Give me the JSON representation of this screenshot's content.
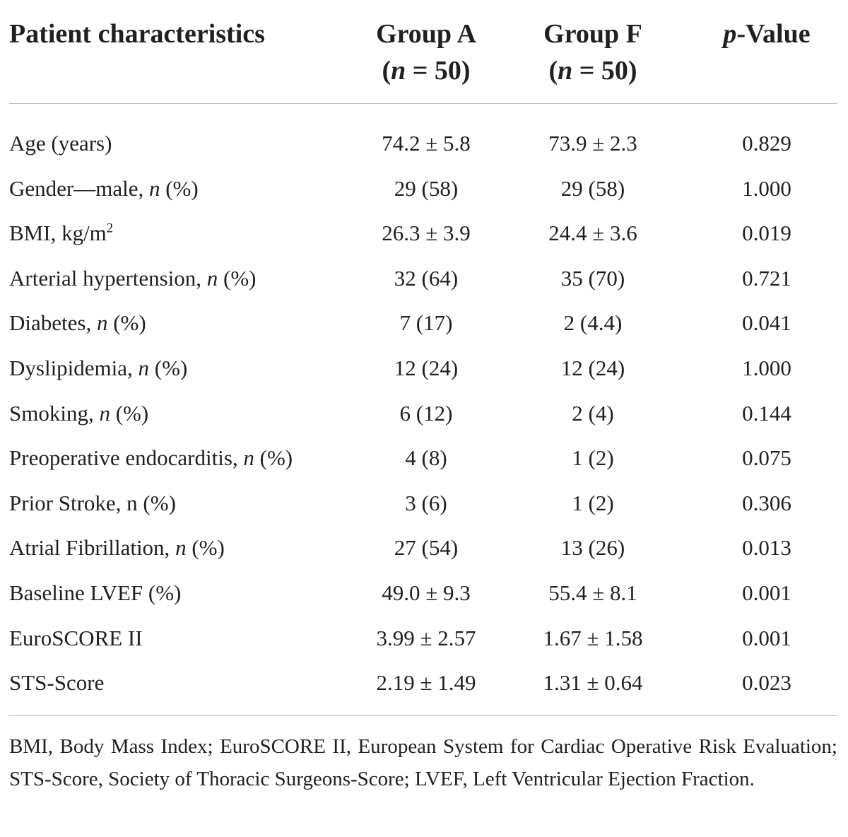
{
  "header": {
    "characteristics": "Patient characteristics",
    "group_a_line1": "Group A",
    "group_a_line2": "(n = 50)",
    "group_f_line1": "Group F",
    "group_f_line2": "(n = 50)",
    "p_value": "p-Value"
  },
  "rows": [
    {
      "label": "Age (years)",
      "a": "74.2 ± 5.8",
      "f": "73.9 ± 2.3",
      "p": "0.829"
    },
    {
      "label": "Gender—male, n (%)",
      "a": "29 (58)",
      "f": "29 (58)",
      "p": "1.000"
    },
    {
      "label": "BMI, kg/m2",
      "a": "26.3 ± 3.9",
      "f": "24.4 ± 3.6",
      "p": "0.019"
    },
    {
      "label": "Arterial hypertension, n (%)",
      "a": "32 (64)",
      "f": "35 (70)",
      "p": "0.721"
    },
    {
      "label": "Diabetes, n (%)",
      "a": "7 (17)",
      "f": "2 (4.4)",
      "p": "0.041"
    },
    {
      "label": "Dyslipidemia, n (%)",
      "a": "12 (24)",
      "f": "12 (24)",
      "p": "1.000"
    },
    {
      "label": "Smoking, n (%)",
      "a": "6 (12)",
      "f": "2 (4)",
      "p": "0.144"
    },
    {
      "label": "Preoperative endocarditis, n (%)",
      "a": "4 (8)",
      "f": "1 (2)",
      "p": "0.075"
    },
    {
      "label": "Prior Stroke, n (%)",
      "a": "3 (6)",
      "f": "1 (2)",
      "p": "0.306"
    },
    {
      "label": "Atrial Fibrillation, n (%)",
      "a": "27 (54)",
      "f": "13 (26)",
      "p": "0.013"
    },
    {
      "label": "Baseline LVEF (%)",
      "a": "49.0 ± 9.3",
      "f": "55.4 ± 8.1",
      "p": "0.001"
    },
    {
      "label": "EuroSCORE II",
      "a": "3.99 ± 2.57",
      "f": "1.67 ± 1.58",
      "p": "0.001"
    },
    {
      "label": "STS-Score",
      "a": "2.19 ± 1.49",
      "f": "1.31 ± 0.64",
      "p": "0.023"
    }
  ],
  "footnote": "BMI, Body Mass Index; EuroSCORE II, European System for Cardiac Operative Risk Evaluation; STS-Score, Society of Thoracic Surgeons-Score; LVEF, Left Ventricular Ejection Fraction."
}
